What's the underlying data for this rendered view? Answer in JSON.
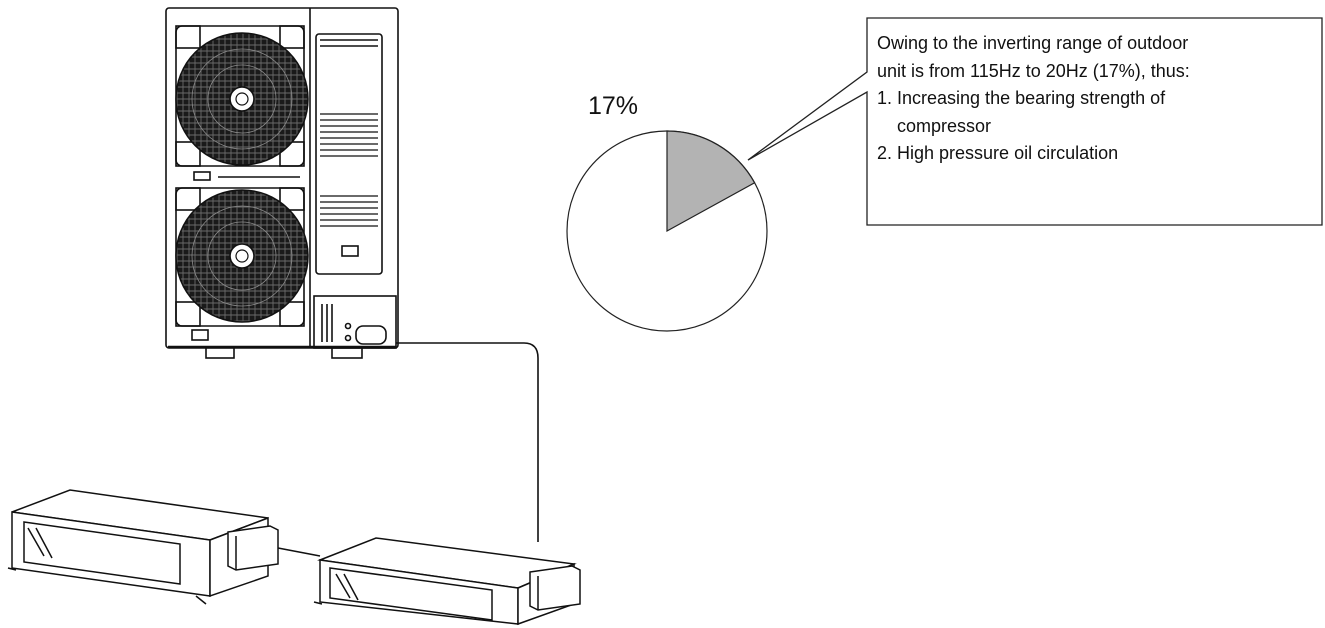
{
  "pie": {
    "percent_label": "17%",
    "slice_fraction": 0.17,
    "slice_color": "#b3b3b3",
    "rest_color": "#ffffff"
  },
  "callout": {
    "line1": "Owing to the inverting range of outdoor",
    "line2": "unit is from 115Hz to 20Hz (17%), thus:",
    "item1_a": "1. Increasing the bearing strength of",
    "item1_b": "compressor",
    "item2": "2. High pressure oil circulation"
  },
  "icons": [
    "outdoor-unit-icon",
    "fan-icon",
    "indoor-duct-unit-icon",
    "refrigerant-pipe-icon"
  ]
}
